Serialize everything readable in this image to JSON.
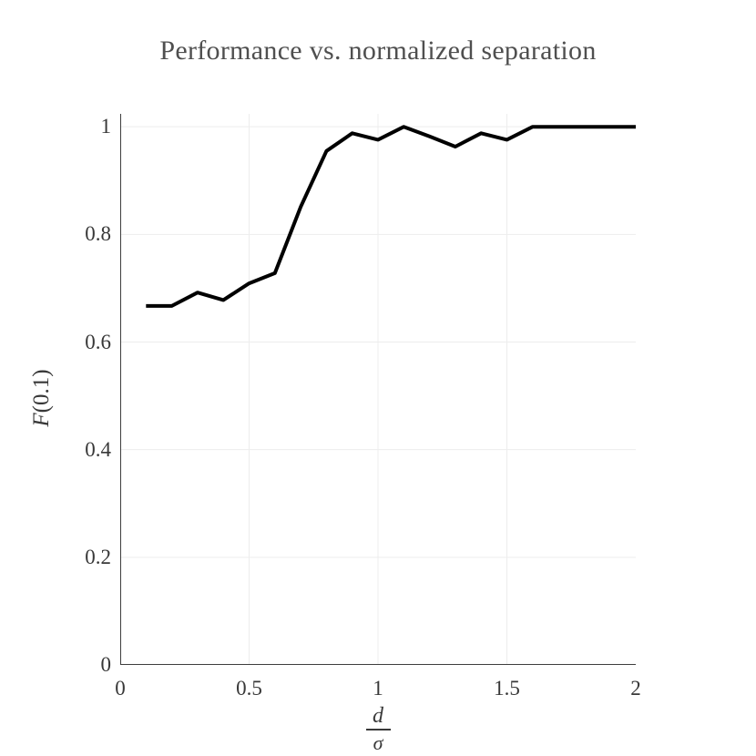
{
  "chart_data": {
    "type": "line",
    "title": "Performance vs. normalized separation",
    "ylabel": "F(0.1)",
    "ylabel_italic": "F",
    "ylabel_rest": "(0.1)",
    "xlabel": "d/σ",
    "xlabel_numerator": "d",
    "xlabel_denominator": "σ",
    "x": [
      0.1,
      0.2,
      0.3,
      0.4,
      0.5,
      0.6,
      0.7,
      0.8,
      0.9,
      1.0,
      1.1,
      1.2,
      1.3,
      1.4,
      1.5,
      1.6,
      1.7,
      1.8,
      1.9,
      2.0
    ],
    "y": [
      0.667,
      0.667,
      0.692,
      0.678,
      0.709,
      0.728,
      0.851,
      0.955,
      0.988,
      0.976,
      1.0,
      0.982,
      0.963,
      0.988,
      0.976,
      1.0,
      1.0,
      1.0,
      1.0,
      1.0
    ],
    "xlim": [
      0,
      2
    ],
    "ylim": [
      0,
      1.024
    ],
    "xticks": {
      "values": [
        0,
        0.5,
        1,
        1.5,
        2
      ],
      "labels": [
        "0",
        "0.5",
        "1",
        "1.5",
        "2"
      ]
    },
    "yticks": {
      "values": [
        0,
        0.2,
        0.4,
        0.6,
        0.8,
        1
      ],
      "labels": [
        "0",
        "0.2",
        "0.4",
        "0.6",
        "0.8",
        "1"
      ]
    },
    "grid": true,
    "legend_position": "none",
    "line_color": "#000000",
    "line_width": 4,
    "colors": {
      "grid": "#ededed",
      "spine": "#3e3e3e",
      "tick_text": "#383838",
      "title_text": "#4f4f4f",
      "background": "#ffffff"
    }
  }
}
